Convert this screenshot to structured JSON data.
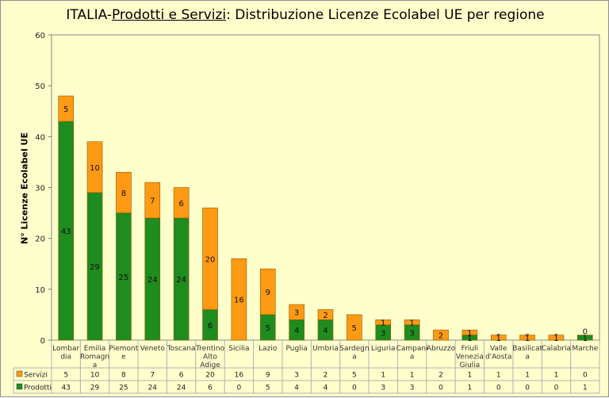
{
  "title": {
    "prefix": "ITALIA-",
    "underlined": "Prodotti e Servizi",
    "suffix": ": Distribuzione Licenze Ecolabel UE per regione"
  },
  "chart_data": {
    "type": "bar",
    "stacked": true,
    "title": "ITALIA-Prodotti e Servizi: Distribuzione Licenze Ecolabel UE per regione",
    "xlabel": "",
    "ylabel": "N° Licenze Ecolabel UE",
    "ylim": [
      0,
      60
    ],
    "yticks": [
      0,
      10,
      20,
      30,
      40,
      50,
      60
    ],
    "grid": false,
    "legend": "data-table",
    "categories": [
      [
        "Lombar",
        "dia"
      ],
      [
        "Emilia",
        "Romagn",
        "a"
      ],
      [
        "Piemont",
        "e"
      ],
      [
        "Veneto"
      ],
      [
        "Toscana"
      ],
      [
        "Trentino",
        "Alto",
        "Adige"
      ],
      [
        "Sicilia"
      ],
      [
        "Lazio"
      ],
      [
        "Puglia"
      ],
      [
        "Umbria"
      ],
      [
        "Sardegn",
        "a"
      ],
      [
        "Liguria"
      ],
      [
        "Campani",
        "a"
      ],
      [
        "Abruzzo"
      ],
      [
        "Friuli",
        "Venezia",
        "Giulia"
      ],
      [
        "Valle",
        "d'Aosta"
      ],
      [
        "Basilicat",
        "a"
      ],
      [
        "Calabria"
      ],
      [
        "Marche"
      ]
    ],
    "series": [
      {
        "name": "Prodotti",
        "color": "#1e8c1e",
        "values": [
          43,
          29,
          25,
          24,
          24,
          6,
          0,
          5,
          4,
          4,
          0,
          3,
          3,
          0,
          1,
          0,
          0,
          0,
          1
        ]
      },
      {
        "name": "Servizi",
        "color": "#ff9a14",
        "values": [
          5,
          10,
          8,
          7,
          6,
          20,
          16,
          9,
          3,
          2,
          5,
          1,
          1,
          2,
          1,
          1,
          1,
          1,
          0
        ]
      }
    ]
  }
}
